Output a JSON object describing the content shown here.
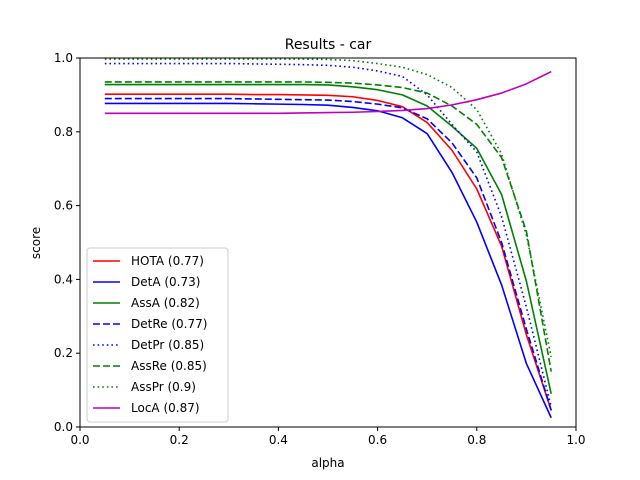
{
  "chart_data": {
    "type": "line",
    "title": "Results - car",
    "xlabel": "alpha",
    "ylabel": "score",
    "xlim": [
      0.0,
      1.0
    ],
    "ylim": [
      0.0,
      1.0
    ],
    "xticks": [
      "0.0",
      "0.2",
      "0.4",
      "0.6",
      "0.8",
      "1.0"
    ],
    "yticks": [
      "0.0",
      "0.2",
      "0.4",
      "0.6",
      "0.8",
      "1.0"
    ],
    "grid": false,
    "legend_position": "lower-left",
    "x": [
      0.05,
      0.1,
      0.15,
      0.2,
      0.25,
      0.3,
      0.35,
      0.4,
      0.45,
      0.5,
      0.55,
      0.6,
      0.65,
      0.7,
      0.75,
      0.8,
      0.85,
      0.9,
      0.95
    ],
    "series": [
      {
        "name": "HOTA (0.77)",
        "color": "#ff0000",
        "style": "solid",
        "values": [
          0.902,
          0.902,
          0.902,
          0.902,
          0.902,
          0.902,
          0.901,
          0.901,
          0.9,
          0.899,
          0.895,
          0.885,
          0.868,
          0.825,
          0.75,
          0.645,
          0.49,
          0.25,
          0.045
        ]
      },
      {
        "name": "DetA (0.73)",
        "color": "#0000ff",
        "style": "solid",
        "values": [
          0.877,
          0.877,
          0.877,
          0.877,
          0.877,
          0.877,
          0.876,
          0.875,
          0.874,
          0.872,
          0.866,
          0.857,
          0.838,
          0.795,
          0.69,
          0.555,
          0.385,
          0.172,
          0.025
        ]
      },
      {
        "name": "AssA (0.82)",
        "color": "#008000",
        "style": "solid",
        "values": [
          0.928,
          0.928,
          0.928,
          0.928,
          0.928,
          0.928,
          0.928,
          0.928,
          0.928,
          0.927,
          0.922,
          0.914,
          0.9,
          0.87,
          0.815,
          0.755,
          0.63,
          0.395,
          0.09
        ]
      },
      {
        "name": "DetRe (0.77)",
        "color": "#0000ff",
        "style": "dashed",
        "values": [
          0.89,
          0.89,
          0.89,
          0.89,
          0.89,
          0.89,
          0.889,
          0.888,
          0.887,
          0.886,
          0.882,
          0.875,
          0.865,
          0.835,
          0.77,
          0.675,
          0.5,
          0.265,
          0.045
        ]
      },
      {
        "name": "DetPr (0.85)",
        "color": "#0000ff",
        "style": "dotted",
        "values": [
          0.985,
          0.985,
          0.985,
          0.985,
          0.985,
          0.985,
          0.984,
          0.983,
          0.982,
          0.98,
          0.975,
          0.965,
          0.95,
          0.9,
          0.82,
          0.745,
          0.57,
          0.325,
          0.055
        ]
      },
      {
        "name": "AssRe (0.85)",
        "color": "#008000",
        "style": "dashed",
        "values": [
          0.935,
          0.935,
          0.935,
          0.935,
          0.935,
          0.935,
          0.935,
          0.935,
          0.935,
          0.934,
          0.932,
          0.927,
          0.92,
          0.905,
          0.87,
          0.82,
          0.73,
          0.53,
          0.15
        ]
      },
      {
        "name": "AssPr (0.9)",
        "color": "#008000",
        "style": "dotted",
        "values": [
          0.997,
          0.997,
          0.997,
          0.997,
          0.997,
          0.997,
          0.997,
          0.997,
          0.997,
          0.996,
          0.993,
          0.985,
          0.975,
          0.955,
          0.92,
          0.86,
          0.74,
          0.52,
          0.19
        ]
      },
      {
        "name": "LocA (0.87)",
        "color": "#bf00bf",
        "style": "solid",
        "values": [
          0.85,
          0.85,
          0.85,
          0.85,
          0.85,
          0.85,
          0.85,
          0.85,
          0.851,
          0.852,
          0.853,
          0.855,
          0.858,
          0.863,
          0.873,
          0.887,
          0.905,
          0.93,
          0.963
        ]
      }
    ]
  }
}
